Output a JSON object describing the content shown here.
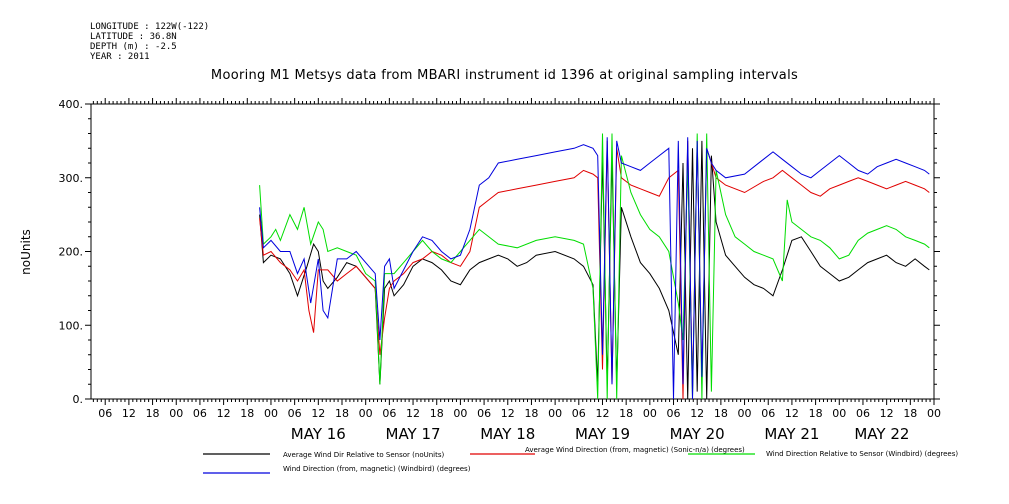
{
  "meta": {
    "longitude": "LONGITUDE : 122W(-122)",
    "latitude": "LATITUDE : 36.8N",
    "depth": "DEPTH (m) : -2.5",
    "year": "YEAR : 2011"
  },
  "chart_data": {
    "type": "line",
    "title": "Mooring M1 Metsys data from MBARI instrument id 1396 at original sampling intervals",
    "ylabel": "noUnits",
    "xlabel": "",
    "ylim": [
      0,
      400
    ],
    "yticks": [
      0,
      100,
      200,
      300,
      400
    ],
    "ytick_labels": [
      "0.",
      "100.",
      "200.",
      "300.",
      "400."
    ],
    "xlim": [
      -1.9,
      7.0
    ],
    "hour_labels": [
      "00",
      "06",
      "12",
      "18"
    ],
    "day_labels": [
      {
        "label": "MAY 16",
        "x": 0.5
      },
      {
        "label": "MAY 17",
        "x": 1.5
      },
      {
        "label": "MAY 18",
        "x": 2.5
      },
      {
        "label": "MAY 19",
        "x": 3.5
      },
      {
        "label": "MAY 20",
        "x": 4.5
      },
      {
        "label": "MAY 21",
        "x": 5.5
      },
      {
        "label": "MAY 22",
        "x": 6.45
      }
    ],
    "x_unit": "days since MAY 16 00:00 (2011)",
    "series": [
      {
        "name": "Average Wind Dir Relative to Sensor (noUnits)",
        "color": "#000000",
        "x": [
          -0.12,
          -0.08,
          0,
          0.1,
          0.2,
          0.28,
          0.38,
          0.45,
          0.5,
          0.55,
          0.6,
          0.7,
          0.8,
          0.9,
          1.0,
          1.1,
          1.15,
          1.2,
          1.25,
          1.3,
          1.4,
          1.5,
          1.6,
          1.7,
          1.8,
          1.9,
          2.0,
          2.1,
          2.2,
          2.3,
          2.4,
          2.5,
          2.6,
          2.7,
          2.8,
          3.0,
          3.2,
          3.3,
          3.4,
          3.45,
          3.5,
          3.55,
          3.6,
          3.65,
          3.7,
          3.8,
          3.9,
          4.0,
          4.1,
          4.2,
          4.3,
          4.35,
          4.4,
          4.45,
          4.5,
          4.55,
          4.6,
          4.65,
          4.7,
          4.8,
          4.9,
          5.0,
          5.1,
          5.2,
          5.3,
          5.4,
          5.5,
          5.6,
          5.7,
          5.8,
          5.9,
          6.0,
          6.1,
          6.2,
          6.3,
          6.4,
          6.5,
          6.6,
          6.7,
          6.8,
          6.9,
          6.95
        ],
        "y": [
          250,
          185,
          195,
          190,
          170,
          140,
          180,
          210,
          200,
          160,
          150,
          165,
          185,
          180,
          165,
          150,
          20,
          150,
          160,
          140,
          155,
          180,
          190,
          185,
          175,
          160,
          155,
          175,
          185,
          190,
          195,
          190,
          180,
          185,
          195,
          200,
          190,
          180,
          155,
          20,
          330,
          20,
          330,
          20,
          260,
          220,
          185,
          170,
          150,
          120,
          60,
          320,
          0,
          340,
          10,
          350,
          0,
          330,
          240,
          195,
          180,
          165,
          155,
          150,
          140,
          175,
          215,
          220,
          200,
          180,
          170,
          160,
          165,
          175,
          185,
          190,
          195,
          185,
          180,
          190,
          180,
          175
        ]
      },
      {
        "name": "Average Wind Direction (from, magnetic) (Sonic-n/a) (degrees)",
        "color": "#e00000",
        "x": [
          -0.12,
          -0.08,
          0,
          0.1,
          0.2,
          0.28,
          0.35,
          0.4,
          0.45,
          0.5,
          0.6,
          0.7,
          0.8,
          0.9,
          1.0,
          1.1,
          1.15,
          1.2,
          1.25,
          1.3,
          1.4,
          1.5,
          1.6,
          1.7,
          1.8,
          1.9,
          2.0,
          2.1,
          2.2,
          2.3,
          2.4,
          2.6,
          2.8,
          3.0,
          3.2,
          3.3,
          3.4,
          3.45,
          3.5,
          3.55,
          3.6,
          3.65,
          3.7,
          3.8,
          3.9,
          4.0,
          4.1,
          4.2,
          4.3,
          4.35,
          4.4,
          4.45,
          4.5,
          4.55,
          4.6,
          4.65,
          4.7,
          4.8,
          5.0,
          5.2,
          5.3,
          5.4,
          5.5,
          5.6,
          5.7,
          5.8,
          5.9,
          6.0,
          6.1,
          6.2,
          6.3,
          6.4,
          6.5,
          6.6,
          6.7,
          6.8,
          6.9,
          6.95
        ],
        "y": [
          245,
          195,
          200,
          185,
          175,
          160,
          175,
          120,
          90,
          175,
          175,
          160,
          170,
          180,
          165,
          150,
          60,
          110,
          150,
          160,
          170,
          185,
          190,
          200,
          195,
          185,
          180,
          200,
          260,
          270,
          280,
          285,
          290,
          295,
          300,
          310,
          305,
          300,
          40,
          350,
          20,
          340,
          300,
          290,
          285,
          280,
          275,
          300,
          310,
          0,
          350,
          10,
          350,
          20,
          340,
          320,
          300,
          290,
          280,
          295,
          300,
          310,
          300,
          290,
          280,
          275,
          285,
          290,
          295,
          300,
          295,
          290,
          285,
          290,
          295,
          290,
          285,
          280
        ]
      },
      {
        "name": "Wind Direction Relative to Sensor (Windbird) (degrees)",
        "color": "#00dd00",
        "x": [
          -0.12,
          -0.08,
          0,
          0.05,
          0.1,
          0.2,
          0.28,
          0.35,
          0.42,
          0.5,
          0.55,
          0.6,
          0.7,
          0.8,
          0.9,
          1.0,
          1.1,
          1.15,
          1.2,
          1.3,
          1.4,
          1.5,
          1.6,
          1.7,
          1.8,
          1.9,
          2.0,
          2.1,
          2.2,
          2.4,
          2.6,
          2.8,
          3.0,
          3.2,
          3.3,
          3.4,
          3.45,
          3.5,
          3.55,
          3.6,
          3.65,
          3.7,
          3.8,
          3.9,
          4.0,
          4.1,
          4.2,
          4.3,
          4.35,
          4.4,
          4.45,
          4.5,
          4.55,
          4.6,
          4.65,
          4.7,
          4.8,
          4.9,
          5.0,
          5.1,
          5.2,
          5.3,
          5.4,
          5.45,
          5.5,
          5.6,
          5.7,
          5.8,
          5.9,
          6.0,
          6.1,
          6.2,
          6.3,
          6.4,
          6.5,
          6.6,
          6.7,
          6.8,
          6.9,
          6.95
        ],
        "y": [
          290,
          210,
          220,
          230,
          215,
          250,
          230,
          260,
          210,
          240,
          230,
          200,
          205,
          200,
          195,
          170,
          160,
          20,
          170,
          170,
          185,
          200,
          215,
          200,
          190,
          185,
          200,
          215,
          230,
          210,
          205,
          215,
          220,
          215,
          210,
          150,
          0,
          360,
          0,
          360,
          0,
          330,
          280,
          250,
          230,
          220,
          200,
          130,
          80,
          320,
          0,
          360,
          0,
          360,
          10,
          310,
          250,
          220,
          210,
          200,
          195,
          190,
          160,
          270,
          240,
          230,
          220,
          215,
          205,
          190,
          195,
          215,
          225,
          230,
          235,
          230,
          220,
          215,
          210,
          205
        ]
      },
      {
        "name": "Wind Direction (from, magnetic) (Windbird) (degrees)",
        "color": "#0000dd",
        "x": [
          -0.12,
          -0.08,
          0,
          0.1,
          0.2,
          0.28,
          0.35,
          0.42,
          0.5,
          0.55,
          0.6,
          0.7,
          0.8,
          0.9,
          1.0,
          1.1,
          1.15,
          1.2,
          1.25,
          1.3,
          1.4,
          1.5,
          1.6,
          1.7,
          1.8,
          1.9,
          2.0,
          2.1,
          2.2,
          2.3,
          2.4,
          2.6,
          2.8,
          3.0,
          3.2,
          3.3,
          3.4,
          3.45,
          3.5,
          3.55,
          3.6,
          3.65,
          3.7,
          3.8,
          3.9,
          4.0,
          4.1,
          4.2,
          4.25,
          4.3,
          4.35,
          4.4,
          4.45,
          4.5,
          4.55,
          4.6,
          4.65,
          4.7,
          4.8,
          5.0,
          5.2,
          5.3,
          5.4,
          5.5,
          5.6,
          5.7,
          5.8,
          5.9,
          6.0,
          6.1,
          6.2,
          6.3,
          6.4,
          6.5,
          6.6,
          6.7,
          6.8,
          6.9,
          6.95
        ],
        "y": [
          260,
          205,
          215,
          200,
          200,
          170,
          190,
          130,
          190,
          120,
          110,
          190,
          190,
          200,
          185,
          170,
          80,
          180,
          190,
          150,
          175,
          200,
          220,
          215,
          200,
          190,
          195,
          230,
          290,
          300,
          320,
          325,
          330,
          335,
          340,
          345,
          340,
          330,
          60,
          355,
          20,
          350,
          320,
          315,
          310,
          320,
          330,
          340,
          0,
          350,
          20,
          355,
          0,
          350,
          30,
          340,
          320,
          310,
          300,
          305,
          325,
          335,
          325,
          315,
          305,
          300,
          310,
          320,
          330,
          320,
          310,
          305,
          315,
          320,
          325,
          320,
          315,
          310,
          305
        ]
      }
    ],
    "legend": [
      {
        "label": "Average Wind Dir Relative to Sensor (noUnits)",
        "color": "#000000"
      },
      {
        "label": "Average Wind Direction (from, magnetic) (Sonic-n/a) (degrees)",
        "color": "#e00000"
      },
      {
        "label": "Wind Direction Relative to Sensor (Windbird) (degrees)",
        "color": "#00dd00"
      },
      {
        "label": "Wind Direction (from, magnetic) (Windbird) (degrees)",
        "color": "#0000dd"
      }
    ]
  }
}
